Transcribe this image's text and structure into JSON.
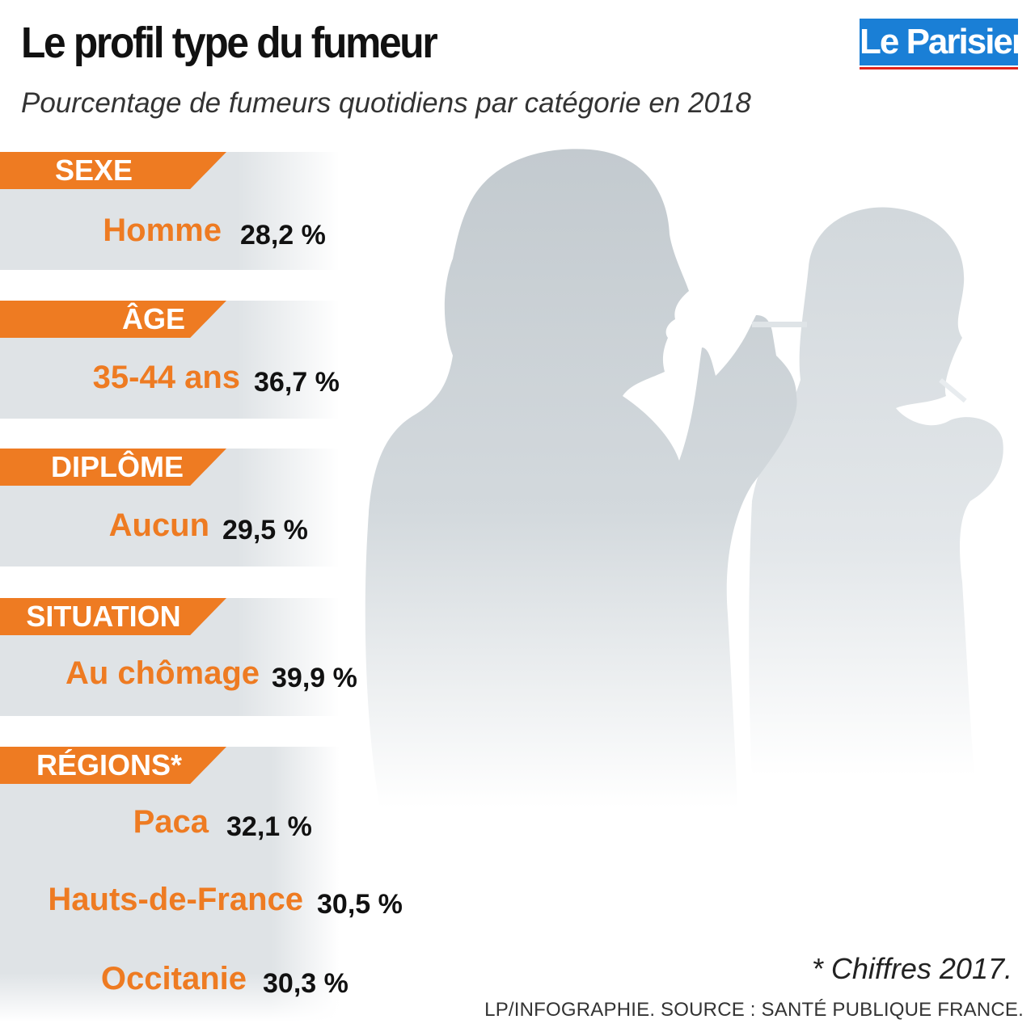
{
  "title": "Le profil type du fumeur",
  "subtitle": "Pourcentage de fumeurs quotidiens par catégorie en 2018",
  "logo": {
    "text": "Le Parisien",
    "box_color": "#1a7fd6",
    "underline_color": "#e2231a"
  },
  "accent_color": "#ee7b22",
  "categories": [
    {
      "tag": "SEXE",
      "items": [
        {
          "label": "Homme",
          "value": "28,2 %"
        }
      ]
    },
    {
      "tag": "ÂGE",
      "items": [
        {
          "label": "35-44 ans",
          "value": "36,7 %"
        }
      ]
    },
    {
      "tag": "DIPLÔME",
      "items": [
        {
          "label": "Aucun",
          "value": "29,5 %"
        }
      ]
    },
    {
      "tag": "SITUATION",
      "items": [
        {
          "label": "Au chômage",
          "value": "39,9 %"
        }
      ]
    },
    {
      "tag": "RÉGIONS*",
      "items": [
        {
          "label": "Paca",
          "value": "32,1 %"
        },
        {
          "label": "Hauts-de-France",
          "value": "30,5 %"
        },
        {
          "label": "Occitanie",
          "value": "30,3 %"
        }
      ]
    }
  ],
  "footnote": "* Chiffres 2017.",
  "credit": "LP/INFOGRAPHIE.  SOURCE : SANTÉ PUBLIQUE FRANCE."
}
